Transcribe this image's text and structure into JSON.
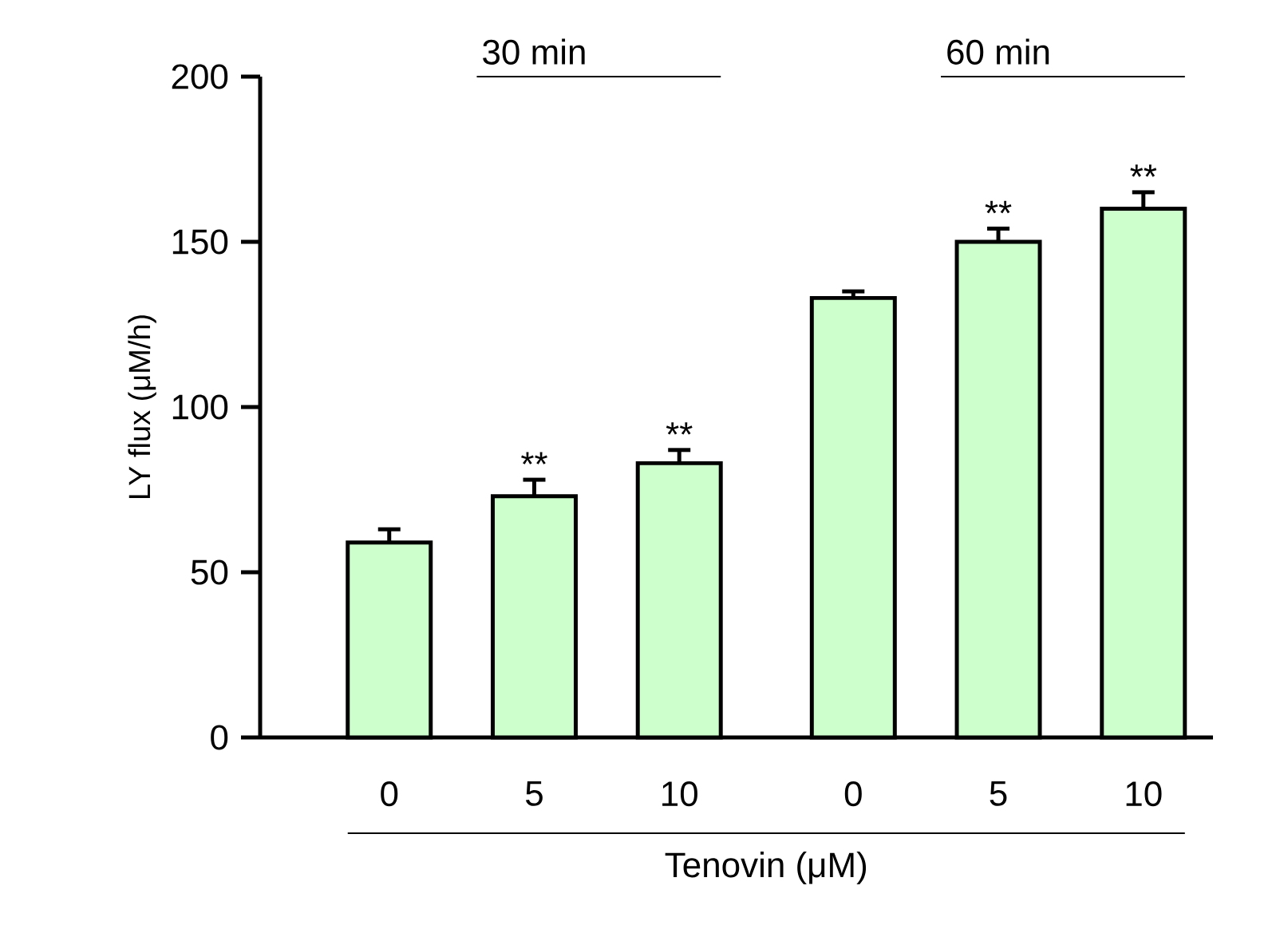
{
  "chart_data": {
    "type": "bar",
    "ylabel": "LY flux (μM/h)",
    "xlabel": "Tenovin (μM)",
    "categories": [
      "0",
      "5",
      "10",
      "0",
      "5",
      "10"
    ],
    "values": [
      59,
      73,
      83,
      133,
      150,
      160
    ],
    "errors": [
      4,
      5,
      4,
      2,
      4,
      5
    ],
    "color": "#ccffcc",
    "ylim": [
      0,
      200
    ],
    "yticks": [
      0,
      50,
      100,
      150,
      200
    ],
    "annotations": [
      "30 min",
      "60 min",
      "**",
      "**",
      "**",
      "**"
    ]
  }
}
